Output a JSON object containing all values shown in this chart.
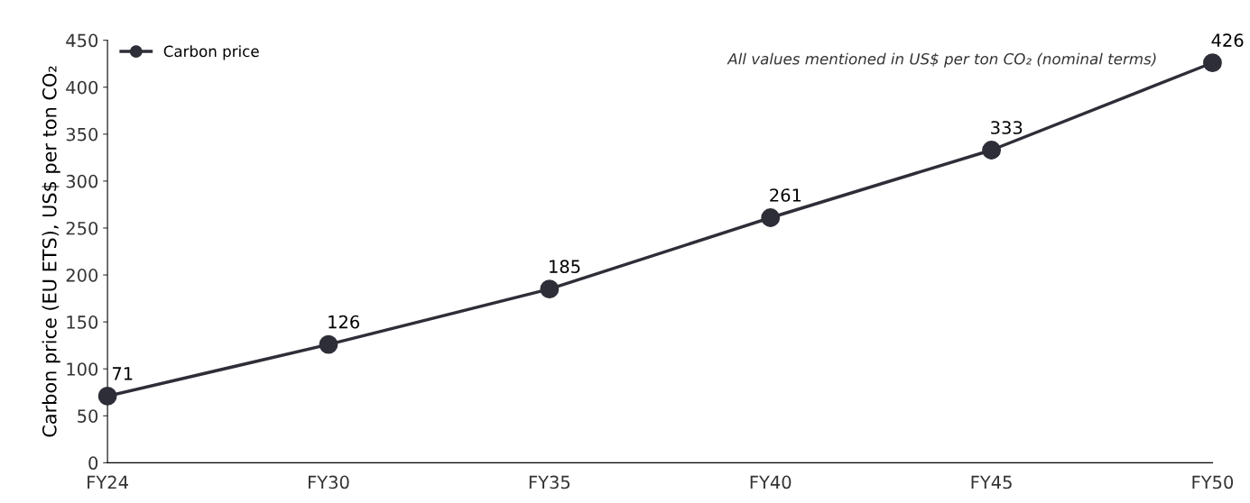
{
  "chart_data": {
    "type": "line",
    "categories": [
      "FY24",
      "FY30",
      "FY35",
      "FY40",
      "FY45",
      "FY50"
    ],
    "series": [
      {
        "name": "Carbon price",
        "color": "#2e2e38",
        "values": [
          71,
          126,
          185,
          261,
          333,
          426
        ]
      }
    ],
    "ylabel": "Carbon price (EU ETS), US$ per ton CO₂",
    "annotations": [
      "All values mentioned in US$ per ton CO₂ (nominal terms)"
    ],
    "ylim": [
      0,
      450
    ],
    "yticks": [
      0,
      50,
      100,
      150,
      200,
      250,
      300,
      350,
      400,
      450
    ],
    "data_labels": true,
    "legend": "top left",
    "marker": "circle",
    "line_style": "solid",
    "grid": false
  }
}
